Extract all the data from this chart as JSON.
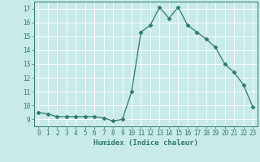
{
  "x": [
    0,
    1,
    2,
    3,
    4,
    5,
    6,
    7,
    8,
    9,
    10,
    11,
    12,
    13,
    14,
    15,
    16,
    17,
    18,
    19,
    20,
    21,
    22,
    23
  ],
  "y": [
    9.5,
    9.4,
    9.2,
    9.2,
    9.2,
    9.2,
    9.2,
    9.1,
    8.9,
    9.0,
    11.0,
    15.3,
    15.8,
    17.1,
    16.3,
    17.1,
    15.8,
    15.3,
    14.8,
    14.2,
    13.0,
    12.4,
    11.5,
    9.9
  ],
  "line_color": "#2d7a6e",
  "marker": "D",
  "marker_size": 2.5,
  "bg_color": "#c8eaea",
  "grid_color": "#b0d8d8",
  "xlabel": "Humidex (Indice chaleur)",
  "xlim": [
    -0.5,
    23.5
  ],
  "ylim": [
    8.5,
    17.5
  ],
  "yticks": [
    9,
    10,
    11,
    12,
    13,
    14,
    15,
    16,
    17
  ],
  "xticks": [
    0,
    1,
    2,
    3,
    4,
    5,
    6,
    7,
    8,
    9,
    10,
    11,
    12,
    13,
    14,
    15,
    16,
    17,
    18,
    19,
    20,
    21,
    22,
    23
  ],
  "label_fontsize": 6.5,
  "tick_fontsize": 5.5
}
